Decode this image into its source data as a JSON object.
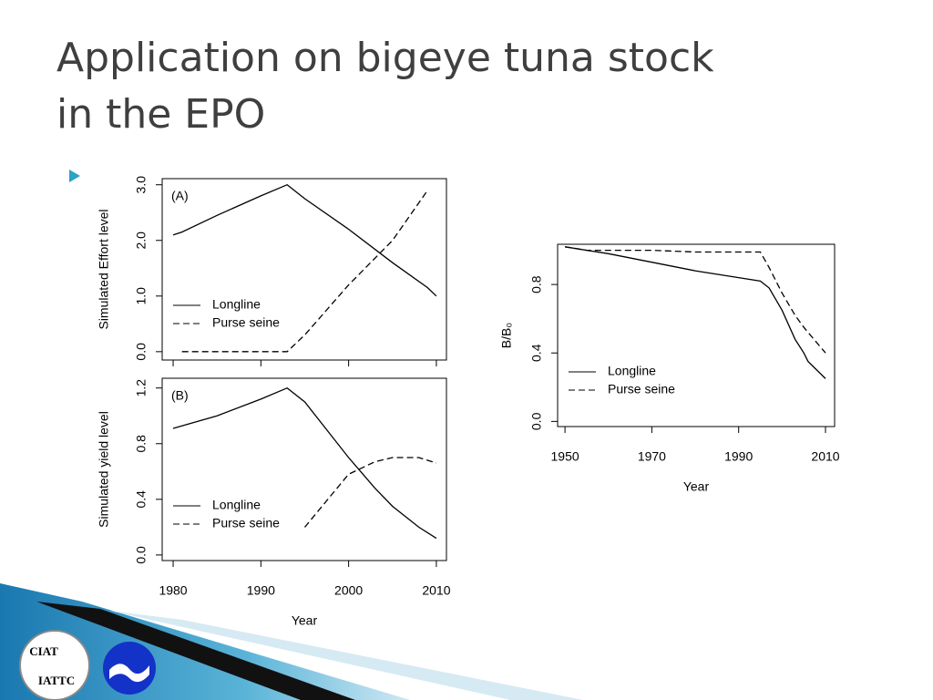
{
  "title": "Application on bigeye tuna stock in the EPO",
  "logo_texts": [
    "CIAT",
    "IATTC"
  ],
  "chart_data": [
    {
      "type": "line",
      "annotation": "(A)",
      "ylabel": "Simulated Effort level",
      "x": [
        1980,
        1981,
        1985,
        1990,
        1993,
        1995,
        2000,
        2005,
        2009,
        2010
      ],
      "series": [
        {
          "name": "Longline",
          "color": "#000000",
          "dash": false,
          "values": [
            2.1,
            2.15,
            2.45,
            2.8,
            3.0,
            2.75,
            2.2,
            1.6,
            1.15,
            1.0
          ]
        },
        {
          "name": "Purse seine",
          "color": "#000000",
          "dash": true,
          "values": [
            null,
            0,
            0,
            0,
            0,
            0.3,
            1.2,
            2.0,
            2.9,
            null
          ]
        }
      ],
      "xlim": [
        1978.75,
        2011.15
      ],
      "ylim": [
        -0.15,
        3.11
      ],
      "xticks": [
        1980,
        1990,
        2000,
        2010
      ],
      "show_xtick_labels": false,
      "yticks": [
        {
          "value": 0,
          "label": "0.0"
        },
        {
          "value": 1,
          "label": "1.0"
        },
        {
          "value": 2,
          "label": "2.0"
        },
        {
          "value": 3,
          "label": "3.0"
        }
      ],
      "legend": "lower left"
    },
    {
      "type": "line",
      "annotation": "(B)",
      "ylabel": "Simulated yield level",
      "xlabel": "Year",
      "x": [
        1980,
        1985,
        1990,
        1993,
        1995,
        2000,
        2003,
        2005,
        2008,
        2010
      ],
      "series": [
        {
          "name": "Longline",
          "color": "#000000",
          "dash": false,
          "values": [
            0.91,
            1.0,
            1.12,
            1.2,
            1.1,
            0.7,
            0.48,
            0.35,
            0.2,
            0.12
          ]
        },
        {
          "name": "Purse seine",
          "color": "#000000",
          "dash": true,
          "values": [
            null,
            null,
            null,
            null,
            0.2,
            0.58,
            0.67,
            0.7,
            0.7,
            0.66
          ]
        }
      ],
      "xlim": [
        1978.75,
        2011.15
      ],
      "ylim": [
        -0.04,
        1.27
      ],
      "xticks": [
        1980,
        1990,
        2000,
        2010
      ],
      "show_xtick_labels": true,
      "yticks": [
        {
          "value": 0,
          "label": "0.0"
        },
        {
          "value": 0.4,
          "label": "0.4"
        },
        {
          "value": 0.8,
          "label": "0.8"
        },
        {
          "value": 1.2,
          "label": "1.2"
        }
      ],
      "legend": "lower left"
    },
    {
      "type": "line",
      "ylabel": "B/B₀",
      "xlabel": "Year",
      "x": [
        1950,
        1955,
        1960,
        1970,
        1980,
        1990,
        1995,
        1997,
        2000,
        2003,
        2005,
        2006,
        2010
      ],
      "series": [
        {
          "name": "Longline",
          "color": "#000000",
          "dash": false,
          "values": [
            1.02,
            1.0,
            0.98,
            0.93,
            0.88,
            0.84,
            0.82,
            0.78,
            0.65,
            0.48,
            0.4,
            0.35,
            0.25
          ]
        },
        {
          "name": "Purse seine",
          "color": "#000000",
          "dash": true,
          "values": [
            1.02,
            1.0,
            1.0,
            1.0,
            0.99,
            0.99,
            0.99,
            0.9,
            0.75,
            0.62,
            0.55,
            0.52,
            0.4
          ]
        }
      ],
      "xlim": [
        1948.3,
        2012.1
      ],
      "ylim": [
        -0.03,
        1.035
      ],
      "xticks": [
        1950,
        1970,
        1990,
        2010
      ],
      "show_xtick_labels": true,
      "yticks": [
        {
          "value": 0,
          "label": "0.0"
        },
        {
          "value": 0.4,
          "label": "0.4"
        },
        {
          "value": 0.8,
          "label": "0.8"
        }
      ],
      "legend": "lower left"
    }
  ]
}
